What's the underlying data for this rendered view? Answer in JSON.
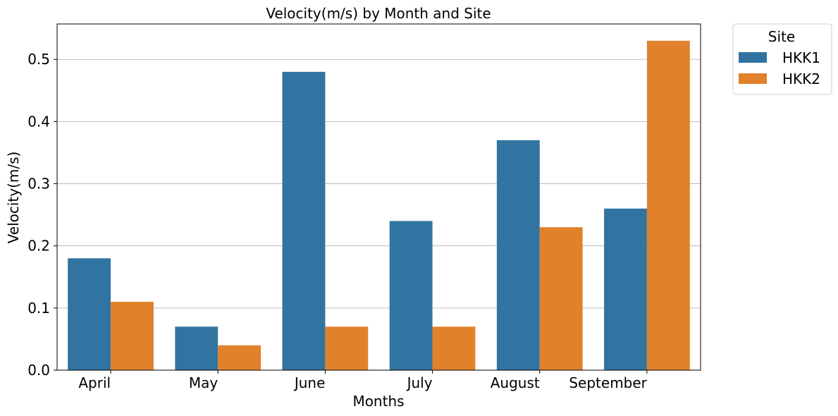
{
  "chart_data": {
    "type": "bar",
    "title": "Velocity(m/s) by Month and Site",
    "xlabel": "Months",
    "ylabel": "Velocity(m/s)",
    "categories": [
      "April",
      "May",
      "June",
      "July",
      "August",
      "September"
    ],
    "series": [
      {
        "name": "HKK1",
        "values": [
          0.18,
          0.07,
          0.48,
          0.24,
          0.37,
          0.26
        ],
        "color": "#3274a1"
      },
      {
        "name": "HKK2",
        "values": [
          0.11,
          0.04,
          0.07,
          0.07,
          0.23,
          0.53
        ],
        "color": "#e1812c"
      }
    ],
    "ylim": [
      0,
      0.557
    ],
    "yticks": [
      "0.0",
      "0.1",
      "0.2",
      "0.3",
      "0.4",
      "0.5"
    ],
    "grid": "horizontal",
    "legend": {
      "title": "Site",
      "placement": "outside-top-right"
    }
  }
}
